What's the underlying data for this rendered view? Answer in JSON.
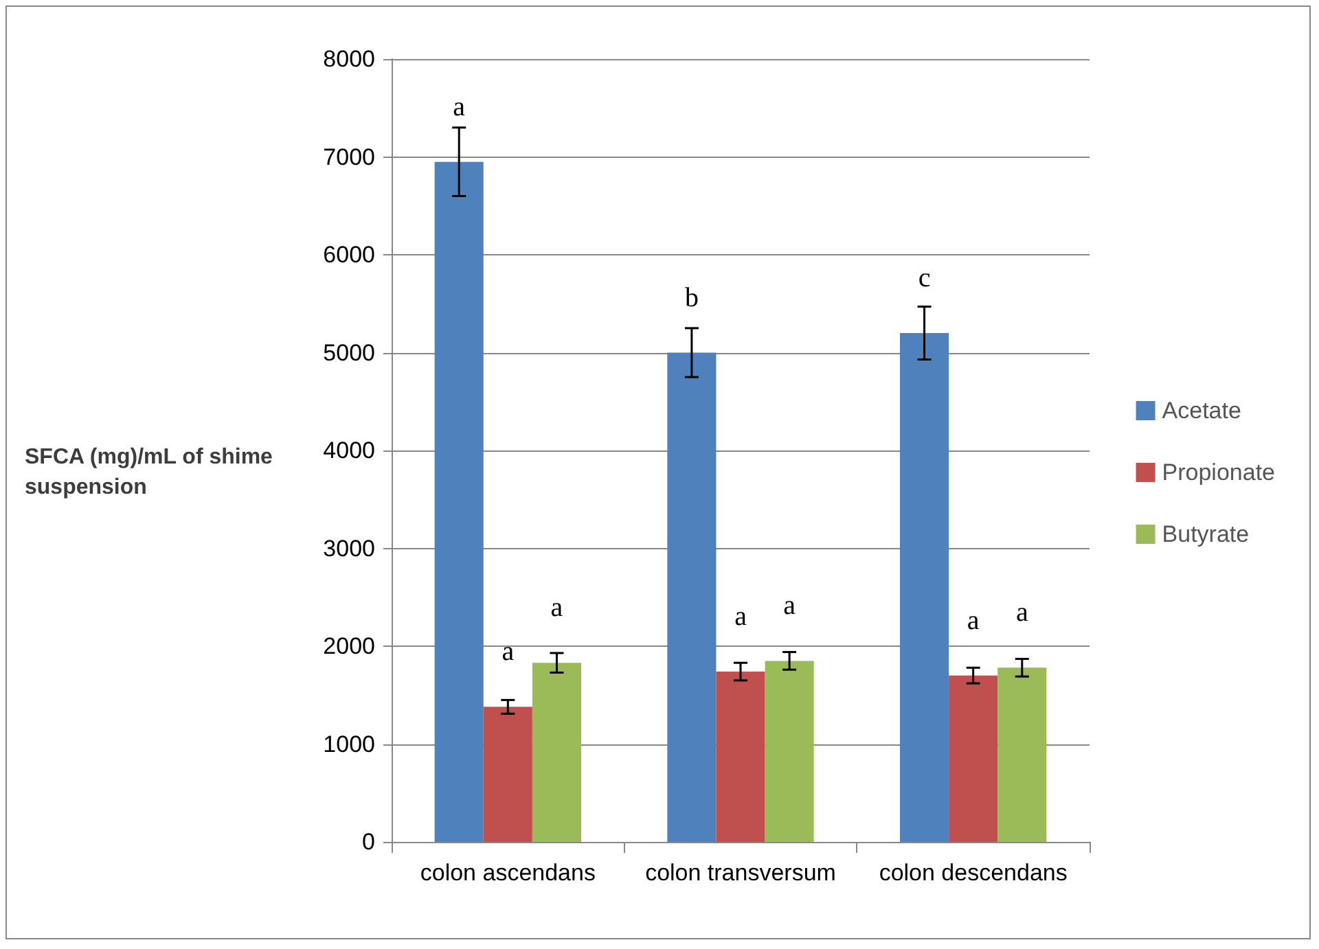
{
  "chart_data": {
    "type": "bar",
    "ylabel": "SFCA (mg)/mL of shime suspension",
    "categories": [
      "colon ascendans",
      "colon transversum",
      "colon descendans"
    ],
    "series": [
      {
        "name": "Acetate",
        "color": "#4f81bd",
        "values": [
          6950,
          5000,
          5200
        ],
        "errors": [
          350,
          250,
          270
        ],
        "value_labels": [
          "a",
          "b",
          "c"
        ]
      },
      {
        "name": "Propionate",
        "color": "#c0504d",
        "values": [
          1380,
          1740,
          1700
        ],
        "errors": [
          70,
          90,
          80
        ],
        "value_labels": [
          "a",
          "a",
          "a"
        ]
      },
      {
        "name": "Butyrate",
        "color": "#9bbb59",
        "values": [
          1830,
          1850,
          1780
        ],
        "errors": [
          100,
          90,
          90
        ],
        "value_labels": [
          "a",
          "a",
          "a"
        ]
      }
    ],
    "ylim": [
      0,
      8000
    ],
    "yticks": [
      0,
      1000,
      2000,
      3000,
      4000,
      5000,
      6000,
      7000,
      8000
    ],
    "grid": "y",
    "legend": "right"
  }
}
